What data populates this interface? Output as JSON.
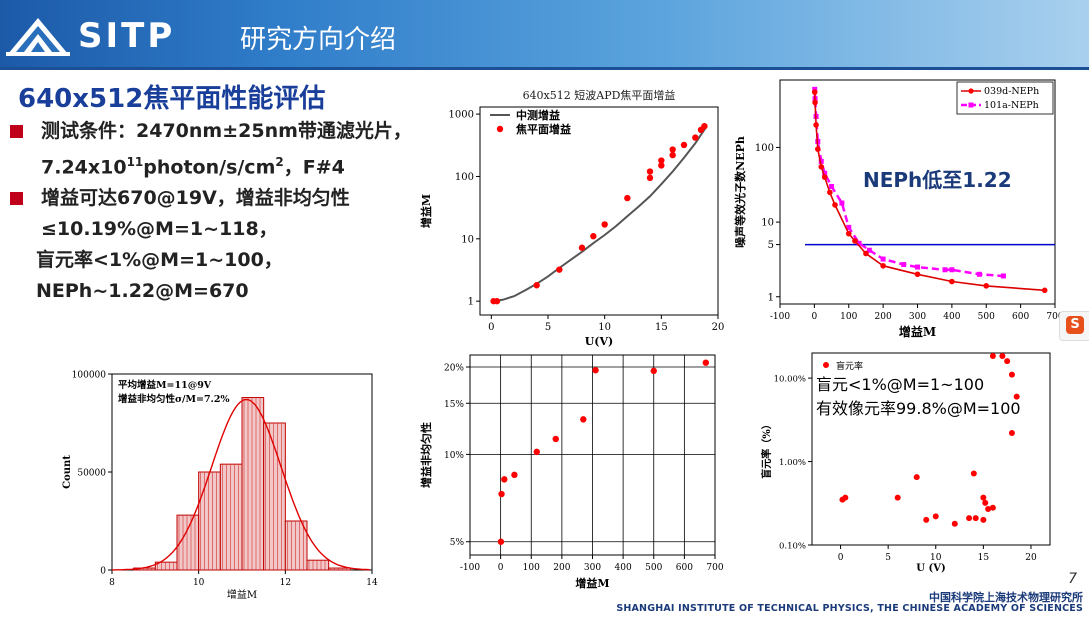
{
  "header": {
    "logo_text": "SITP",
    "title": "研究方向介绍"
  },
  "slide": {
    "title": "640x512焦平面性能评估",
    "bullets": [
      {
        "line1": "测试条件：2470nm±25nm带通滤光片，",
        "line2_prefix": "7.24x10",
        "line2_sup": "11",
        "line2_mid": "photon/s/cm",
        "line2_sup2": "2",
        "line2_suffix": "，F#4"
      },
      {
        "line1": "增益可达670@19V，增益非均匀性",
        "line2": "≤10.19%@M=1~118，",
        "line3": "盲元率<1%@M=1~100，",
        "line4": "NEPh~1.22@M=670"
      }
    ]
  },
  "colors": {
    "accent": "#1a3f9a",
    "bullet": "#c0001a",
    "point": "#ff0000",
    "magenta": "#ff00ff",
    "line": "#555555",
    "blue_line": "#0000cc"
  },
  "footer": {
    "page_number": "7",
    "institute_cn": "中国科学院上海技术物理研究所",
    "institute_en": "SHANGHAI INSTITUTE OF TECHNICAL PHYSICS, THE CHINESE ACADEMY OF SCIENCES"
  },
  "chart_data": [
    {
      "id": "gain",
      "type": "scatter",
      "title": "640x512 短波APD焦平面增益",
      "xlabel": "U(V)",
      "ylabel": "增益M",
      "xlim": [
        -1,
        20
      ],
      "ylim": [
        0.6,
        1300
      ],
      "yscale": "log",
      "xticks": [
        "0",
        "5",
        "10",
        "15",
        "20"
      ],
      "yticks": [
        "1",
        "10",
        "100",
        "1000"
      ],
      "legend": {
        "position": "top-left",
        "entries": [
          "中测增益",
          "焦平面增益"
        ]
      },
      "series": [
        {
          "name": "中测增益",
          "kind": "line",
          "x": [
            0,
            0.5,
            1,
            2,
            3,
            4,
            5,
            6,
            7,
            8,
            9,
            10,
            11,
            12,
            13,
            14,
            15,
            16,
            17,
            18,
            19
          ],
          "y": [
            1,
            1.02,
            1.05,
            1.2,
            1.5,
            1.9,
            2.5,
            3.4,
            4.6,
            6.2,
            8.5,
            11.5,
            16,
            23,
            33,
            48,
            75,
            120,
            200,
            340,
            640
          ]
        },
        {
          "name": "焦平面增益",
          "kind": "points",
          "x": [
            0.2,
            0.5,
            4,
            6,
            8,
            9,
            10,
            12,
            14,
            14,
            15,
            15,
            16,
            16,
            17,
            18,
            18.5,
            18.8
          ],
          "y": [
            1,
            1,
            1.8,
            3.2,
            7.2,
            11,
            17,
            45,
            95,
            120,
            150,
            180,
            220,
            270,
            320,
            420,
            560,
            640
          ]
        }
      ]
    },
    {
      "id": "neph",
      "type": "line",
      "title": "",
      "xlabel": "增益M",
      "ylabel": "噪声等效光子数NEPh",
      "xlim": [
        -100,
        700
      ],
      "ylim": [
        0.8,
        800
      ],
      "yscale": "log",
      "xticks": [
        "-100",
        "0",
        "100",
        "200",
        "300",
        "400",
        "500",
        "600",
        "700"
      ],
      "yticks": [
        "1",
        "5",
        "10",
        "100"
      ],
      "hline": 5,
      "annotation": "NEPh低至1.22",
      "legend": {
        "position": "top-right",
        "entries": [
          "039d-NEPh",
          "101a-NEPh"
        ]
      },
      "series": [
        {
          "name": "039d-NEPh",
          "x": [
            1,
            2,
            5,
            10,
            20,
            30,
            45,
            60,
            100,
            118,
            150,
            200,
            300,
            400,
            500,
            670
          ],
          "y": [
            550,
            400,
            200,
            95,
            55,
            40,
            25,
            17,
            7,
            5.6,
            3.8,
            2.6,
            2.0,
            1.6,
            1.4,
            1.22
          ]
        },
        {
          "name": "101a-NEPh",
          "x": [
            1,
            2,
            5,
            10,
            20,
            30,
            50,
            80,
            100,
            130,
            160,
            200,
            260,
            300,
            380,
            400,
            480,
            550
          ],
          "y": [
            600,
            450,
            260,
            120,
            65,
            45,
            30,
            18,
            8.5,
            5.2,
            4.2,
            3.2,
            2.7,
            2.5,
            2.3,
            2.3,
            2.0,
            1.9
          ]
        }
      ]
    },
    {
      "id": "hist",
      "type": "bar",
      "title": "",
      "xlabel": "增益M",
      "ylabel": "Count",
      "xlim": [
        8,
        14
      ],
      "ylim": [
        0,
        100000
      ],
      "xticks": [
        "8",
        "10",
        "12",
        "14"
      ],
      "yticks": [
        "0",
        "50000",
        "100000"
      ],
      "annotations": [
        "平均增益M=11@9V",
        "增益非均匀性σ/M=7.2%"
      ],
      "bins": [
        8.5,
        9,
        9.5,
        10,
        10.5,
        11,
        11.5,
        12,
        12.5,
        13
      ],
      "values": [
        1000,
        4000,
        28000,
        50000,
        54000,
        88000,
        75000,
        25000,
        5000,
        1000
      ],
      "fit_curve": {
        "mean": 11.1,
        "sigma": 0.8,
        "peak": 87000
      }
    },
    {
      "id": "uniformity",
      "type": "scatter",
      "title": "",
      "xlabel": "增益M",
      "ylabel": "增益非均匀性",
      "xlim": [
        -100,
        700
      ],
      "ylim": [
        4.5,
        22
      ],
      "yscale": "log",
      "xticks": [
        "-100",
        "0",
        "100",
        "200",
        "300",
        "400",
        "500",
        "600",
        "700"
      ],
      "yticks": [
        "5%",
        "10%",
        "15%",
        "20%"
      ],
      "series": [
        {
          "name": "",
          "x": [
            1,
            3,
            12,
            45,
            118,
            180,
            270,
            310,
            500,
            670
          ],
          "y": [
            5,
            7.3,
            8.2,
            8.5,
            10.2,
            11.3,
            13.2,
            19.5,
            19.4,
            20.7
          ]
        }
      ]
    },
    {
      "id": "blind",
      "type": "scatter",
      "title": "",
      "xlabel": "U (V)",
      "ylabel": "盲元率（%）",
      "xlim": [
        -3,
        22
      ],
      "ylim": [
        0.1,
        20
      ],
      "yscale": "log",
      "xticks": [
        "0",
        "5",
        "10",
        "15",
        "20"
      ],
      "yticks": [
        "0.10%",
        "1.00%",
        "10.00%"
      ],
      "legend": {
        "position": "top-left",
        "entries": [
          "盲元率"
        ]
      },
      "annotations": [
        "盲元<1%@M=1~100",
        "有效像元率99.8%@M=100"
      ],
      "series": [
        {
          "name": "盲元率",
          "x": [
            0.2,
            0.5,
            6,
            8,
            9,
            10,
            12,
            13.5,
            14,
            14.2,
            15,
            15,
            15.2,
            15.5,
            16,
            16,
            17,
            17.5,
            18,
            18,
            18.5
          ],
          "y": [
            0.35,
            0.37,
            0.37,
            0.65,
            0.2,
            0.22,
            0.18,
            0.21,
            0.72,
            0.21,
            0.37,
            0.2,
            0.32,
            0.27,
            0.28,
            25,
            20,
            16,
            11,
            2.2,
            6
          ]
        }
      ]
    }
  ]
}
